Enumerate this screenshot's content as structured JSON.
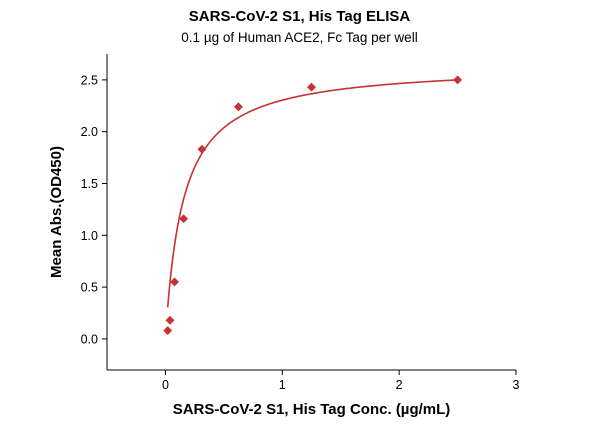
{
  "chart_data": {
    "type": "scatter",
    "title": "SARS-CoV-2 S1, His Tag ELISA",
    "subtitle": "0.1 µg of Human ACE2, Fc Tag per well",
    "xlabel": "SARS-CoV-2 S1, His Tag Conc. (µg/mL)",
    "ylabel": "Mean Abs.(OD450)",
    "xlim": [
      -0.5,
      3.0
    ],
    "ylim": [
      -0.3,
      2.75
    ],
    "xticks": [
      0,
      1,
      2,
      3
    ],
    "xtick_labels": [
      "0",
      "1",
      "2",
      "3"
    ],
    "yticks": [
      0.0,
      0.5,
      1.0,
      1.5,
      2.0,
      2.5
    ],
    "ytick_labels": [
      "0.0",
      "0.5",
      "1.0",
      "1.5",
      "2.0",
      "2.5"
    ],
    "grid": false,
    "legend": "none",
    "color": "#C83232",
    "points": {
      "x": [
        0.0195,
        0.039,
        0.078,
        0.156,
        0.3125,
        0.625,
        1.25,
        2.5
      ],
      "y": [
        0.08,
        0.18,
        0.55,
        1.16,
        1.83,
        2.24,
        2.43,
        2.5
      ]
    },
    "fit_curve": {
      "model": "hyperbolic",
      "bmax": 2.65,
      "kd": 0.15,
      "x_range": [
        0.0195,
        2.5
      ]
    }
  }
}
